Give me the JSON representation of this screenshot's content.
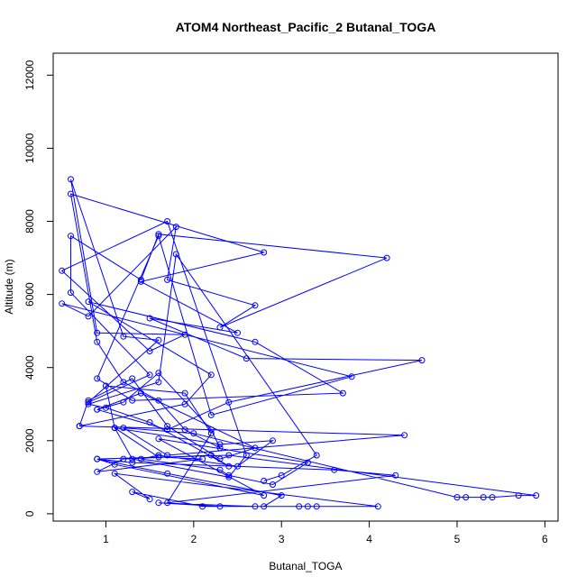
{
  "chart_data": {
    "type": "line",
    "title": "ATOM4 Northeast_Pacific_2 Butanal_TOGA",
    "xlabel": "Butanal_TOGA",
    "ylabel": "Altitude (m)",
    "xlim": [
      0.4,
      6.15
    ],
    "ylim": [
      -200,
      12600
    ],
    "xticks": [
      1,
      2,
      3,
      4,
      5,
      6
    ],
    "yticks": [
      0,
      2000,
      4000,
      6000,
      8000,
      10000,
      12000
    ],
    "grid": false,
    "legend": "none",
    "color": "#0000ff",
    "marker": "open-circle",
    "series": [
      {
        "x": [
          3.3,
          2.3,
          1.6,
          2.7,
          3.2,
          2.1,
          1.3,
          1.5,
          1.1,
          4.1,
          3.4,
          2.8,
          3.0,
          1.7,
          0.9,
          2.4,
          5.9,
          5.7,
          5.4,
          5.3,
          5.1,
          5.0,
          2.0,
          1.2,
          1.7,
          4.4,
          0.7,
          1.9,
          2.2,
          0.8,
          2.7,
          3.7,
          1.3,
          0.9,
          1.6,
          2.2,
          3.8,
          0.5,
          0.8,
          1.8,
          1.7,
          2.7,
          2.3,
          4.2,
          1.6,
          1.4,
          0.6,
          0.6,
          1.5,
          0.8,
          1.6,
          1.2,
          0.6,
          0.9,
          1.9,
          1.5,
          0.5,
          1.7,
          2.6,
          2.4,
          1.3,
          1.1,
          2.3,
          2.9,
          2.5,
          1.6,
          1.4,
          2.3,
          2.4,
          2.9,
          3.3,
          1.6,
          2.8,
          1.1,
          0.9,
          1.3,
          3.6,
          4.3,
          1.7,
          2.2,
          1.9,
          1.0,
          1.1,
          1.6,
          2.1,
          0.9,
          1.2,
          2.2,
          2.4,
          1.5,
          1.0,
          0.8,
          1.6,
          1.8,
          3.4,
          3.0,
          2.8
        ],
        "y": [
          200,
          200,
          300,
          200,
          200,
          200,
          600,
          400,
          1100,
          200,
          200,
          200,
          500,
          1100,
          1500,
          1600,
          500,
          500,
          450,
          450,
          450,
          450,
          2200,
          2350,
          1600,
          2150,
          2400,
          3000,
          3800,
          5800,
          4700,
          3300,
          3100,
          3700,
          7600,
          2700,
          3750,
          5750,
          5400,
          7850,
          6400,
          5700,
          5100,
          7000,
          7650,
          6400,
          7600,
          6050,
          3800,
          3050,
          4750,
          4850,
          9150,
          4950,
          4900,
          4450,
          6650,
          8000,
          1600,
          1000,
          1500,
          2350,
          1900,
          2000,
          1300,
          1600,
          1500,
          1200,
          1050,
          800,
          1400,
          2050,
          500,
          1350,
          1500,
          1400,
          1200,
          1050,
          300,
          2200,
          3300,
          3500,
          2350,
          1550,
          1500,
          1150,
          1500,
          1600,
          1300,
          2500,
          2900,
          3000,
          3600,
          7100,
          1600,
          1050,
          900
        ]
      },
      {
        "x": [
          0.7,
          0.8,
          1.3,
          1.7,
          2.3,
          2.7,
          1.4,
          0.9,
          1.2,
          1.6,
          2.2,
          2.3,
          1.9,
          1.6,
          1.2,
          0.9,
          0.6,
          2.8,
          1.4,
          2.5,
          1.5,
          2.6,
          4.6,
          2.4,
          1.7,
          0.9
        ],
        "y": [
          2400,
          3100,
          3700,
          2400,
          1500,
          1800,
          3300,
          2850,
          3050,
          3850,
          2300,
          1800,
          2300,
          3100,
          3600,
          4700,
          8750,
          7150,
          6350,
          4950,
          5350,
          4250,
          4200,
          3050,
          2300,
          2850
        ]
      }
    ]
  }
}
